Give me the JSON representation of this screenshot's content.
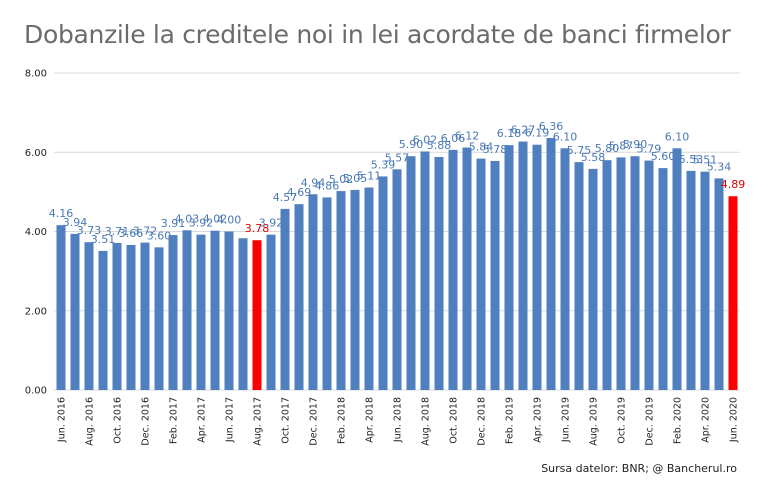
{
  "chart_data": {
    "type": "bar",
    "title": "Dobanzile la creditele noi in lei acordate de banci firmelor",
    "source": "Sursa datelor: BNR; @ Bancherul.ro",
    "ylim": [
      0,
      8
    ],
    "yticks": [
      "0.00",
      "2.00",
      "4.00",
      "6.00",
      "8.00"
    ],
    "grid": true,
    "colors": {
      "bar": "#4f7fbf",
      "highlight": "#ff0000",
      "label": "#4a78b5",
      "highlight_label": "#e00000"
    },
    "categories": [
      "Jun. 2016",
      "Jul. 2016",
      "Aug. 2016",
      "Sep. 2016",
      "Oct. 2016",
      "Nov. 2016",
      "Dec. 2016",
      "Jan. 2017",
      "Feb. 2017",
      "Mar. 2017",
      "Apr. 2017",
      "May. 2017",
      "Jun. 2017",
      "Jul. 2017",
      "Aug. 2017",
      "Sep. 2017",
      "Oct. 2017",
      "Nov. 2017",
      "Dec. 2017",
      "Jan. 2018",
      "Feb. 2018",
      "Mar. 2018",
      "Apr. 2018",
      "May. 2018",
      "Jun. 2018",
      "Jul. 2018",
      "Aug. 2018",
      "Sep. 2018",
      "Oct. 2018",
      "Nov. 2018",
      "Dec. 2018",
      "Jan. 2019",
      "Feb. 2019",
      "Mar. 2019",
      "Apr. 2019",
      "May. 2019",
      "Jun. 2019",
      "Jul. 2019",
      "Aug. 2019",
      "Sep. 2019",
      "Oct. 2019",
      "Nov. 2019",
      "Dec. 2019",
      "Jan. 2020",
      "Feb. 2020",
      "Mar. 2020",
      "Apr. 2020",
      "May. 2020",
      "Jun. 2020"
    ],
    "xtick_labels": [
      "Jun. 2016",
      "Aug. 2016",
      "Oct. 2016",
      "Dec. 2016",
      "Feb. 2017",
      "Apr. 2017",
      "Jun. 2017",
      "Aug. 2017",
      "Oct. 2017",
      "Dec. 2017",
      "Feb. 2018",
      "Apr. 2018",
      "Jun. 2018",
      "Aug. 2018",
      "Oct. 2018",
      "Dec. 2018",
      "Feb. 2019",
      "Apr. 2019",
      "Jun. 2019",
      "Aug. 2019",
      "Oct. 2019",
      "Dec. 2019",
      "Feb. 2020",
      "Apr. 2020",
      "Jun. 2020"
    ],
    "values": [
      4.16,
      3.94,
      3.73,
      3.51,
      3.71,
      3.66,
      3.72,
      3.6,
      3.91,
      4.03,
      3.92,
      4.02,
      4.0,
      3.83,
      3.78,
      3.92,
      4.57,
      4.69,
      4.94,
      4.86,
      5.02,
      5.05,
      5.11,
      5.39,
      5.57,
      5.9,
      6.02,
      5.88,
      6.06,
      6.12,
      5.84,
      5.78,
      6.18,
      6.27,
      6.19,
      6.36,
      6.1,
      5.75,
      5.58,
      5.8,
      5.87,
      5.9,
      5.79,
      5.6,
      6.1,
      5.53,
      5.51,
      5.34,
      4.89
    ],
    "highlight_indices": [
      14,
      48
    ],
    "data_labels": [
      "4.16",
      "3.94",
      "3.73",
      "3.51",
      "3.71",
      "3.66",
      "3.72",
      "3.60",
      "3.91",
      "4.03",
      "3.92",
      "4.02",
      "4.00",
      "",
      "3.78",
      "3.92",
      "4.57",
      "4.69",
      "4.94",
      "4.86",
      "5.02",
      "5.05",
      "5.11",
      "5.39",
      "5.57",
      "5.90",
      "6.02",
      "5.88",
      "6.06",
      "6.12",
      "5.84",
      "5.78",
      "6.18",
      "6.27",
      "6.19",
      "6.36",
      "6.10",
      "5.75",
      "5.58",
      "5.80",
      "5.87",
      "5.90",
      "5.79",
      "5.60",
      "6.10",
      "5.53",
      "5.51",
      "5.34",
      "4.89"
    ]
  }
}
